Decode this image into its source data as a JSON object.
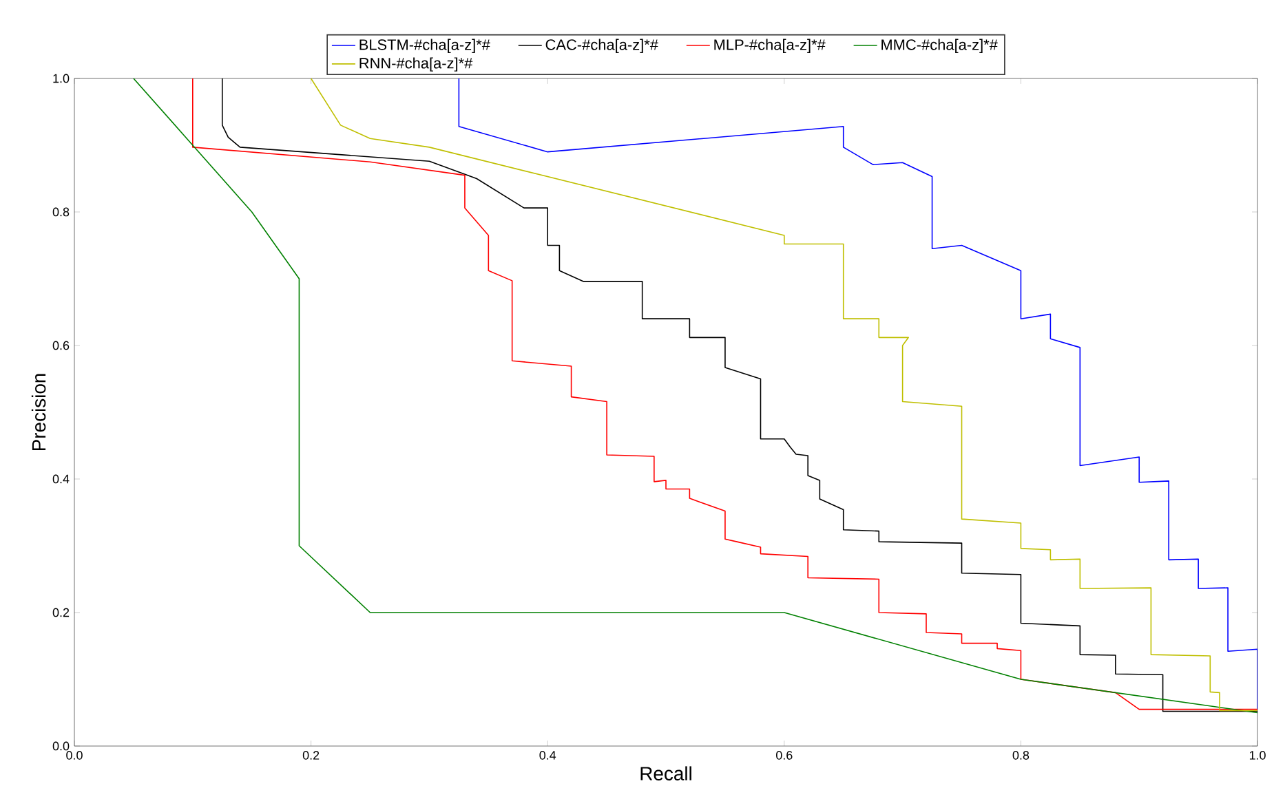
{
  "chart_data": {
    "type": "line",
    "xlabel": "Recall",
    "ylabel": "Precision",
    "legend": "top",
    "grid": false,
    "line_style": "solid",
    "marker": "none",
    "xlim": [
      0,
      1
    ],
    "ylim": [
      0,
      1
    ],
    "xticks": [
      {
        "value": 0,
        "label": "0.0"
      },
      {
        "value": 0.2,
        "label": "0.2"
      },
      {
        "value": 0.4,
        "label": "0.4"
      },
      {
        "value": 0.6,
        "label": "0.6"
      },
      {
        "value": 0.8,
        "label": "0.8"
      },
      {
        "value": 1,
        "label": "1.0"
      }
    ],
    "yticks": [
      {
        "value": 0,
        "label": "0.0"
      },
      {
        "value": 0.2,
        "label": "0.2"
      },
      {
        "value": 0.4,
        "label": "0.4"
      },
      {
        "value": 0.6,
        "label": "0.6"
      },
      {
        "value": 0.8,
        "label": "0.8"
      },
      {
        "value": 1,
        "label": "1.0"
      }
    ],
    "series": [
      {
        "name": "BLSTM-#cha[a-z]*#",
        "color": "#0000ff",
        "x": [
          0.325,
          0.325,
          0.4,
          0.65,
          0.65,
          0.675,
          0.7,
          0.725,
          0.725,
          0.75,
          0.8,
          0.8,
          0.825,
          0.825,
          0.85,
          0.85,
          0.9,
          0.9,
          0.925,
          0.925,
          0.95,
          0.95,
          0.975,
          0.975,
          1.0,
          1.0
        ],
        "values": [
          1.0,
          0.928,
          0.89,
          0.928,
          0.897,
          0.871,
          0.874,
          0.853,
          0.745,
          0.75,
          0.712,
          0.64,
          0.647,
          0.61,
          0.597,
          0.42,
          0.433,
          0.395,
          0.397,
          0.279,
          0.28,
          0.236,
          0.237,
          0.142,
          0.145,
          0.05
        ]
      },
      {
        "name": "CAC-#cha[a-z]*#",
        "color": "#000000",
        "x": [
          0.125,
          0.125,
          0.13,
          0.14,
          0.3,
          0.34,
          0.38,
          0.4,
          0.4,
          0.41,
          0.41,
          0.43,
          0.48,
          0.48,
          0.52,
          0.52,
          0.55,
          0.55,
          0.58,
          0.58,
          0.6,
          0.605,
          0.61,
          0.62,
          0.62,
          0.63,
          0.63,
          0.65,
          0.65,
          0.68,
          0.68,
          0.75,
          0.75,
          0.8,
          0.8,
          0.85,
          0.85,
          0.88,
          0.88,
          0.92,
          0.92,
          1.0
        ],
        "values": [
          1.0,
          0.93,
          0.912,
          0.897,
          0.876,
          0.85,
          0.806,
          0.806,
          0.75,
          0.75,
          0.712,
          0.696,
          0.696,
          0.64,
          0.64,
          0.612,
          0.612,
          0.567,
          0.55,
          0.46,
          0.46,
          0.448,
          0.437,
          0.435,
          0.405,
          0.398,
          0.37,
          0.354,
          0.324,
          0.322,
          0.306,
          0.304,
          0.259,
          0.257,
          0.184,
          0.18,
          0.137,
          0.136,
          0.108,
          0.107,
          0.052,
          0.052
        ]
      },
      {
        "name": "MLP-#cha[a-z]*#",
        "color": "#ff0000",
        "x": [
          0.1,
          0.1,
          0.25,
          0.33,
          0.33,
          0.35,
          0.35,
          0.37,
          0.37,
          0.42,
          0.42,
          0.45,
          0.45,
          0.49,
          0.49,
          0.5,
          0.5,
          0.52,
          0.52,
          0.55,
          0.55,
          0.56,
          0.58,
          0.58,
          0.62,
          0.62,
          0.68,
          0.68,
          0.72,
          0.72,
          0.75,
          0.75,
          0.78,
          0.78,
          0.8,
          0.8,
          0.88,
          0.9,
          1.0
        ],
        "values": [
          1.0,
          0.897,
          0.875,
          0.855,
          0.806,
          0.765,
          0.712,
          0.697,
          0.577,
          0.569,
          0.523,
          0.516,
          0.436,
          0.434,
          0.396,
          0.398,
          0.385,
          0.385,
          0.371,
          0.352,
          0.31,
          0.306,
          0.298,
          0.288,
          0.284,
          0.252,
          0.25,
          0.2,
          0.198,
          0.17,
          0.168,
          0.154,
          0.154,
          0.146,
          0.143,
          0.1,
          0.08,
          0.055,
          0.055
        ]
      },
      {
        "name": "MMC-#cha[a-z]*#",
        "color": "#008000",
        "x": [
          0.05,
          0.1,
          0.15,
          0.19,
          0.19,
          0.25,
          0.6,
          0.8,
          1.0
        ],
        "values": [
          1.0,
          0.9,
          0.8,
          0.7,
          0.3,
          0.2,
          0.2,
          0.1,
          0.05
        ]
      },
      {
        "name": "RNN-#cha[a-z]*#",
        "color": "#bfbf00",
        "x": [
          0.2,
          0.225,
          0.25,
          0.3,
          0.6,
          0.6,
          0.65,
          0.65,
          0.68,
          0.68,
          0.705,
          0.7,
          0.7,
          0.75,
          0.75,
          0.8,
          0.8,
          0.825,
          0.825,
          0.85,
          0.85,
          0.91,
          0.91,
          0.96,
          0.96,
          0.968,
          0.968,
          1.0
        ],
        "values": [
          1.0,
          0.93,
          0.91,
          0.897,
          0.765,
          0.752,
          0.752,
          0.64,
          0.64,
          0.612,
          0.612,
          0.6,
          0.516,
          0.509,
          0.34,
          0.334,
          0.296,
          0.294,
          0.279,
          0.28,
          0.236,
          0.237,
          0.137,
          0.135,
          0.081,
          0.08,
          0.053,
          0.053
        ]
      }
    ]
  }
}
